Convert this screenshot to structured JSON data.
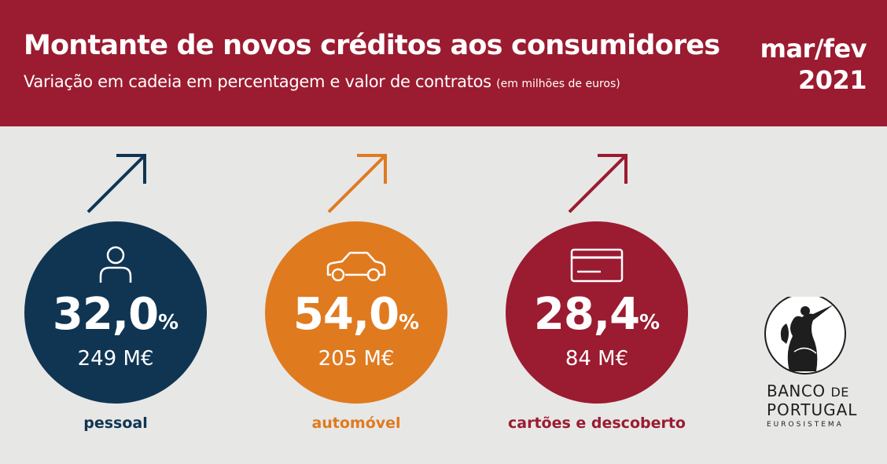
{
  "header": {
    "title": "Montante de novos créditos aos consumidores",
    "subtitle": "Variação em cadeia em percentagem e valor de contratos",
    "subtitle_note": "(em milhões de euros)",
    "period_line1": "mar/fev",
    "period_line2": "2021"
  },
  "colors": {
    "header_bg": "#9b1b30",
    "background": "#e7e7e6",
    "pessoal": "#0f3553",
    "automovel": "#e07a1f",
    "cartoes": "#9b1b30"
  },
  "items": [
    {
      "pct": "32,0",
      "pct_sign": "%",
      "value": "249 M€",
      "label": "pessoal",
      "icon": "person-icon",
      "trend": "up"
    },
    {
      "pct": "54,0",
      "pct_sign": "%",
      "value": "205 M€",
      "label": "automóvel",
      "icon": "car-icon",
      "trend": "up"
    },
    {
      "pct": "28,4",
      "pct_sign": "%",
      "value": "84 M€",
      "label": "cartões e descoberto",
      "icon": "credit-card-icon",
      "trend": "up"
    }
  ],
  "logo": {
    "line1a": "BANCO",
    "line1b": "DE",
    "line2": "PORTUGAL",
    "line3": "EUROSISTEMA"
  }
}
